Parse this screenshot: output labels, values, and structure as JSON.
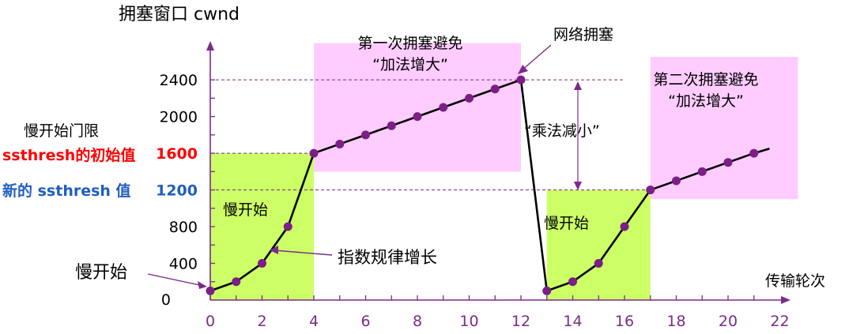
{
  "chart_data": {
    "type": "line",
    "title": "拥塞窗口 cwnd",
    "xlabel": "传输轮次",
    "ylabel": "",
    "x_ticks": [
      0,
      2,
      4,
      6,
      8,
      10,
      12,
      14,
      16,
      18,
      20,
      22
    ],
    "y_ticks": [
      0,
      400,
      800,
      1200,
      1600,
      2000,
      2400
    ],
    "xlim": [
      0,
      22
    ],
    "ylim": [
      0,
      2400
    ],
    "grid": false,
    "series": [
      {
        "x": [
          0,
          1,
          2,
          3,
          4,
          5,
          6,
          7,
          8,
          9,
          10,
          11,
          12,
          13,
          14,
          15,
          16,
          17,
          18,
          19,
          20,
          21
        ],
        "y": [
          100,
          200,
          400,
          800,
          1600,
          1700,
          1800,
          1900,
          2000,
          2100,
          2200,
          2300,
          2400,
          100,
          200,
          400,
          800,
          1200,
          1300,
          1400,
          1500,
          1600
        ],
        "line_end": {
          "x": 21.6,
          "y": 1650
        }
      }
    ],
    "regions": [
      {
        "label": "慢开始",
        "x0": 0,
        "x1": 4,
        "y0": 0,
        "y1": 1600,
        "color": "#ccff66"
      },
      {
        "label": "慢开始",
        "x0": 13,
        "x1": 17,
        "y0": 0,
        "y1": 1200,
        "color": "#ccff66"
      },
      {
        "label_lines": [
          "第一次拥塞避免",
          "“加法增大”"
        ],
        "x0": 4,
        "x1": 12,
        "y0": 1400,
        "y1": 2800,
        "color": "#ffccff"
      },
      {
        "label_lines": [
          "第二次拥塞避免",
          "“加法增大”"
        ],
        "x0": 17,
        "x1": 22.7,
        "y0": 1100,
        "y1": 2650,
        "color": "#ffccff"
      }
    ],
    "reference_lines": [
      {
        "y": 2400,
        "x0": 0,
        "x1": 16
      },
      {
        "y": 1600,
        "x0": 0,
        "x1": 4
      },
      {
        "y": 1200,
        "x0": 0,
        "x1": 17
      }
    ],
    "annotations": {
      "slow_start_left": "慢开始",
      "exp_growth": "指数规律增长",
      "congestion": "网络拥塞",
      "mult_decrease": "“乘法减小”",
      "ssthresh_label": "慢开始门限",
      "ssthresh_init": "ssthresh的初始值",
      "ssthresh_new": "新的 ssthresh 值"
    },
    "colors": {
      "axis": "#7b2a8a",
      "line": "#000000",
      "marker": "#7b1f86",
      "ssthresh_init": "#ff0000",
      "ssthresh_new": "#1f5fbf",
      "dashed": "#7b2a8a"
    }
  }
}
